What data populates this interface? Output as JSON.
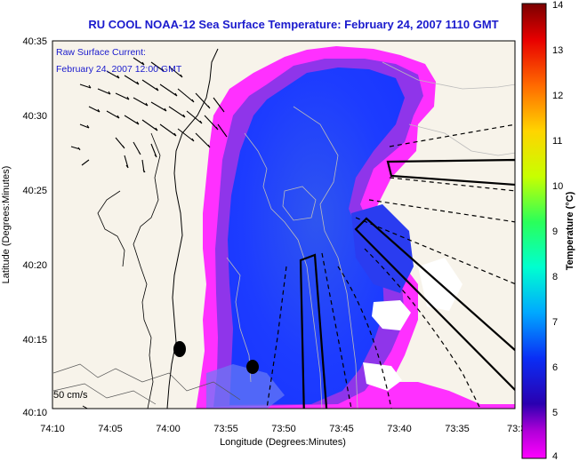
{
  "title": "RU COOL  NOAA-12  Sea Surface Temperature:  February 24, 2007 1110 GMT",
  "inset": {
    "line1": "Raw Surface Current:",
    "line2": "February 24, 2007 12:00 GMT"
  },
  "scale_label": "50 cm/s",
  "x_axis": {
    "label": "Longitude (Degrees:Minutes)",
    "ticks": [
      "74:10",
      "74:05",
      "74:00",
      "73:55",
      "73:50",
      "73:45",
      "73:40",
      "73:35",
      "73:3"
    ]
  },
  "y_axis": {
    "label": "Latitude (Degrees:Minutes)",
    "ticks": [
      "40:35",
      "40:30",
      "40:25",
      "40:20",
      "40:15",
      "40:10"
    ]
  },
  "colorbar": {
    "label": "Temperature (°C)",
    "ticks": [
      "14",
      "13",
      "12",
      "11",
      "10",
      "9",
      "8",
      "7",
      "6",
      "5",
      "4"
    ],
    "colors": [
      "#ff00ff",
      "#2a00b0",
      "#0a2ef5",
      "#00a8ff",
      "#00ffd0",
      "#2aff5a",
      "#c8ff00",
      "#ffd400",
      "#ff6a00",
      "#e80000",
      "#7a0000"
    ]
  },
  "map_colors": {
    "land": "#f7f3ea",
    "water_warm": "#ff30ff",
    "water_mid": "#8a30e8",
    "water_cool": "#1e40ff",
    "water_core": "#2a48e8",
    "no_data": "#ffffff"
  }
}
